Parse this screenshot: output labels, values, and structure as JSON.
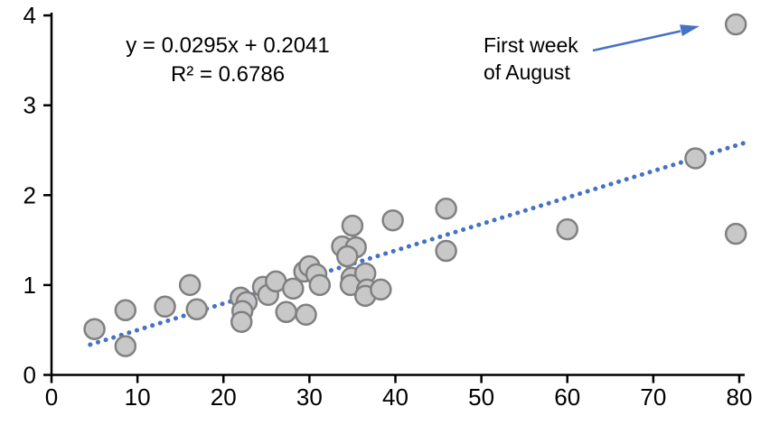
{
  "chart_data": {
    "type": "scatter",
    "title": "",
    "xlabel": "",
    "ylabel": "",
    "grid": false,
    "legend": false,
    "x_axis": {
      "min": 0,
      "max": 80,
      "tick_step": 10,
      "ticks": [
        0,
        10,
        20,
        30,
        40,
        50,
        60,
        70,
        80
      ]
    },
    "y_axis": {
      "min": 0,
      "max": 4,
      "tick_step": 1,
      "ticks": [
        0,
        1,
        2,
        3,
        4
      ]
    },
    "points": [
      [
        5.0,
        0.51
      ],
      [
        8.6,
        0.72
      ],
      [
        8.6,
        0.32
      ],
      [
        13.2,
        0.76
      ],
      [
        16.1,
        1.0
      ],
      [
        16.9,
        0.73
      ],
      [
        22.0,
        0.86
      ],
      [
        22.7,
        0.81
      ],
      [
        22.2,
        0.71
      ],
      [
        22.1,
        0.59
      ],
      [
        24.6,
        0.98
      ],
      [
        25.2,
        0.89
      ],
      [
        26.1,
        1.04
      ],
      [
        27.3,
        0.7
      ],
      [
        28.1,
        0.96
      ],
      [
        29.4,
        1.15
      ],
      [
        30.0,
        1.21
      ],
      [
        29.6,
        0.67
      ],
      [
        30.8,
        1.12
      ],
      [
        31.2,
        1.0
      ],
      [
        35.0,
        1.66
      ],
      [
        33.8,
        1.43
      ],
      [
        35.4,
        1.42
      ],
      [
        34.4,
        1.32
      ],
      [
        34.9,
        1.08
      ],
      [
        34.8,
        1.0
      ],
      [
        36.5,
        1.13
      ],
      [
        36.7,
        0.95
      ],
      [
        36.5,
        0.88
      ],
      [
        38.3,
        0.95
      ],
      [
        39.7,
        1.72
      ],
      [
        45.9,
        1.85
      ],
      [
        45.9,
        1.38
      ],
      [
        60.0,
        1.62
      ],
      [
        74.9,
        2.41
      ],
      [
        79.6,
        3.9
      ],
      [
        79.6,
        1.57
      ]
    ],
    "trendline": {
      "slope": 0.0295,
      "intercept": 0.2041,
      "r_squared": 0.6786,
      "x_start": 4.5,
      "x_end": 80.5,
      "style": "dotted"
    },
    "equation": {
      "line1": "y = 0.0295x + 0.2041",
      "line2": "R² = 0.6786"
    },
    "annotation": {
      "line1": "First week",
      "line2": "of August",
      "points_to": {
        "x": 79.6,
        "y": 3.9
      }
    },
    "colors": {
      "point_fill": "#c8c8c8",
      "point_border": "#808080",
      "trendline": "#4472c4",
      "arrow": "#4472c4",
      "axis": "#000000",
      "text": "#000000"
    }
  }
}
